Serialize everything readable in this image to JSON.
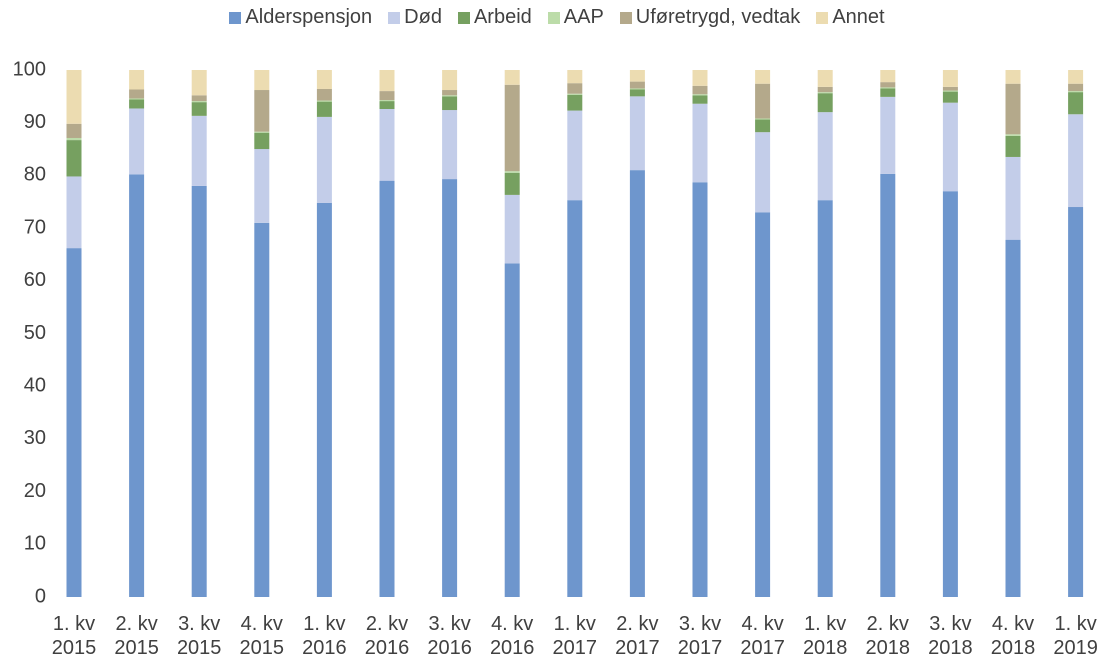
{
  "chart_data": {
    "type": "stacked_bar",
    "categories": [
      "1. kv 2015",
      "2. kv 2015",
      "3. kv 2015",
      "4. kv 2015",
      "1. kv 2016",
      "2. kv 2016",
      "3. kv 2016",
      "4. kv 2016",
      "1. kv 2017",
      "2. kv 2017",
      "3. kv 2017",
      "4. kv 2017",
      "1. kv 2018",
      "2. kv 2018",
      "3. kv 2018",
      "4. kv 2018",
      "1. kv 2019"
    ],
    "series": [
      {
        "name": "Alderspensjon",
        "color": "#6e96cd",
        "values": [
          66.2,
          80.2,
          78,
          71,
          74.8,
          79,
          79.3,
          63.3,
          75.3,
          81,
          78.7,
          73,
          75.3,
          80.3,
          77,
          67.8,
          74
        ]
      },
      {
        "name": "Død",
        "color": "#c3cde9",
        "values": [
          13.6,
          12.5,
          13.3,
          14,
          16.3,
          13.6,
          13.1,
          13,
          17,
          14,
          14.9,
          15.2,
          16.7,
          14.6,
          16.8,
          15.7,
          17.6
        ]
      },
      {
        "name": "Arbeid",
        "color": "#76a060",
        "values": [
          6.9,
          1.7,
          2.6,
          3.1,
          2.9,
          1.5,
          2.6,
          4.2,
          3,
          1.3,
          1.6,
          2.4,
          3.6,
          1.6,
          2.1,
          4,
          4.2
        ]
      },
      {
        "name": "AAP",
        "color": "#bcdca9",
        "values": [
          0.4,
          0.2,
          0.2,
          0.2,
          0.2,
          0.2,
          0.2,
          0.3,
          0.2,
          0.2,
          0.2,
          0.2,
          0.2,
          0.2,
          0.2,
          0.3,
          0.2
        ]
      },
      {
        "name": "Uføretrygd, vedtak",
        "color": "#b4a98b",
        "values": [
          2.7,
          1.7,
          1.1,
          7.9,
          2.2,
          1.7,
          1,
          16.4,
          2,
          1.3,
          1.6,
          6.6,
          1,
          1,
          0.7,
          9.6,
          1.4
        ]
      },
      {
        "name": "Annet",
        "color": "#ecdcb1",
        "values": [
          10.2,
          3.7,
          4.8,
          3.8,
          3.6,
          4,
          3.8,
          2.8,
          2.5,
          2.2,
          3,
          2.6,
          3.2,
          2.3,
          3.2,
          2.6,
          2.6
        ]
      }
    ],
    "ylim": [
      0,
      100
    ],
    "yticks": [
      0,
      10,
      20,
      30,
      40,
      50,
      60,
      70,
      80,
      90,
      100
    ],
    "grid": false,
    "legend": "top"
  }
}
